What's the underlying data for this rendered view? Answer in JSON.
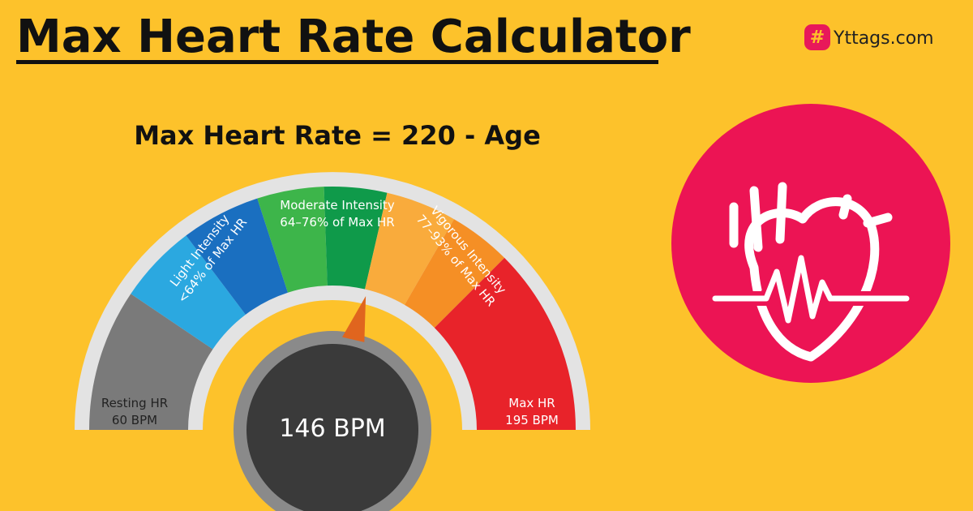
{
  "header": {
    "title": "Max Heart Rate Calculator",
    "brand": "Yttags.com"
  },
  "formula": "Max Heart Rate = 220 - Age",
  "gauge": {
    "zones": [
      {
        "label": "Resting HR",
        "detail": "60 BPM"
      },
      {
        "label": "Light Intensity",
        "detail": "<64% of Max HR"
      },
      {
        "label": "Moderate Intensity",
        "detail": "64–76% of Max HR"
      },
      {
        "label": "Vigorous Intensity",
        "detail": "77–93% of Max HR"
      },
      {
        "label": "Max HR",
        "detail": "195 BPM"
      }
    ],
    "reading": "146 BPM"
  }
}
